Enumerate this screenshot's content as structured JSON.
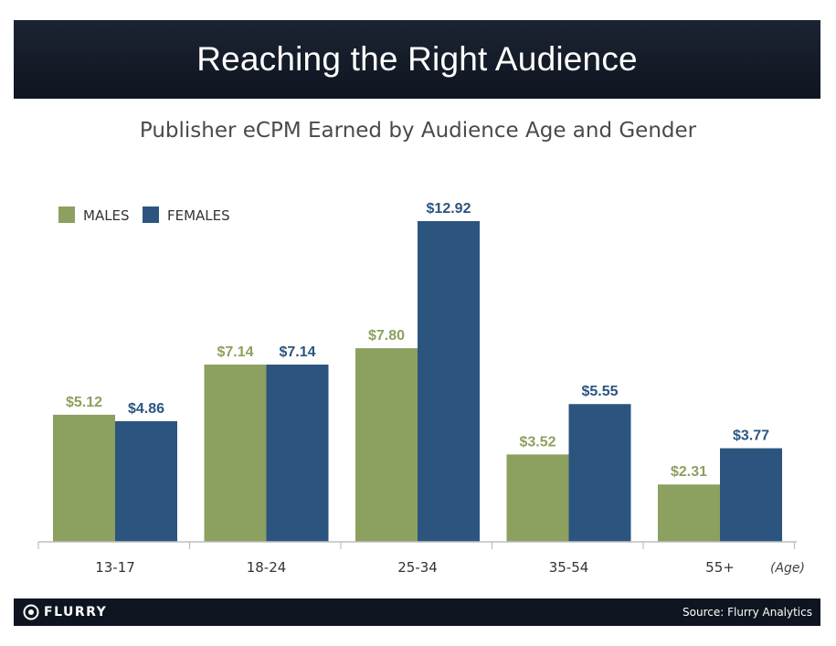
{
  "header": {
    "title": "Reaching the Right Audience"
  },
  "footer": {
    "logo_text": "FLURRY",
    "source": "Source: Flurry Analytics"
  },
  "colors": {
    "males": "#8ca05f",
    "females": "#2b557f",
    "header_bg": "#141b27"
  },
  "chart_data": {
    "type": "bar",
    "title": "Publisher eCPM Earned by Audience Age and Gender",
    "xlabel": "(Age)",
    "ylabel": "",
    "categories": [
      "13-17",
      "18-24",
      "25-34",
      "35-54",
      "55+"
    ],
    "series": [
      {
        "name": "MALES",
        "values": [
          5.12,
          7.14,
          7.8,
          3.52,
          2.31
        ],
        "labels": [
          "$5.12",
          "$7.14",
          "$7.80",
          "$3.52",
          "$2.31"
        ]
      },
      {
        "name": "FEMALES",
        "values": [
          4.86,
          7.14,
          12.92,
          5.55,
          3.77
        ],
        "labels": [
          "$4.86",
          "$7.14",
          "$12.92",
          "$5.55",
          "$3.77"
        ]
      }
    ],
    "ylim": [
      0,
      13.5
    ],
    "grid": false,
    "legend": "top-left"
  }
}
